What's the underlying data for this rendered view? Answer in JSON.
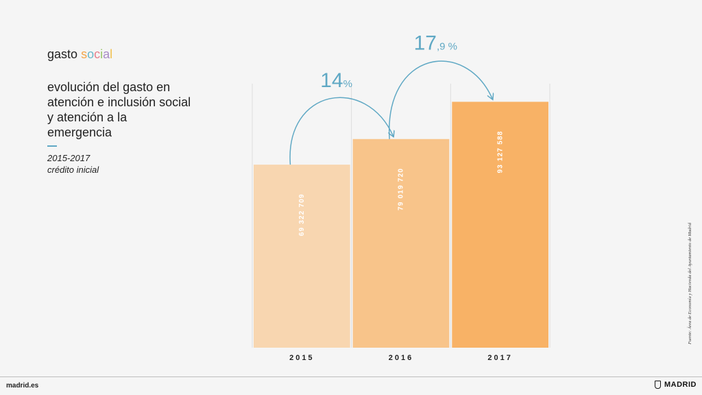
{
  "header": {
    "section_word1": "gasto",
    "section_word2": [
      "s",
      "o",
      "c",
      "i",
      "a",
      "l"
    ],
    "chart_title": "evolución del gasto en atención e inclusión social y atención a la emergencia",
    "period": "2015-2017",
    "measure": "crédito inicial"
  },
  "chart_data": {
    "type": "bar",
    "categories": [
      "2015",
      "2016",
      "2017"
    ],
    "values": [
      69322709,
      79019720,
      93127588
    ],
    "value_labels": [
      "69 322 709",
      "79 019 720",
      "93 127 588"
    ],
    "ylim": [
      0,
      100000000
    ],
    "colors": [
      "#f8d6b0",
      "#f8c48a",
      "#f8b266"
    ],
    "arrow_color": "#5fa8c4",
    "grid": "vertical",
    "annotations": [
      {
        "from": "2015",
        "to": "2016",
        "big": "14",
        "small": "%"
      },
      {
        "from": "2016",
        "to": "2017",
        "big": "17",
        "small": ",9 %"
      }
    ]
  },
  "source": "Fuente: Área de Economía y Hacienda del Ayuntamiento de Madrid",
  "footer": {
    "url": "madrid.es",
    "brand": "MADRID"
  }
}
